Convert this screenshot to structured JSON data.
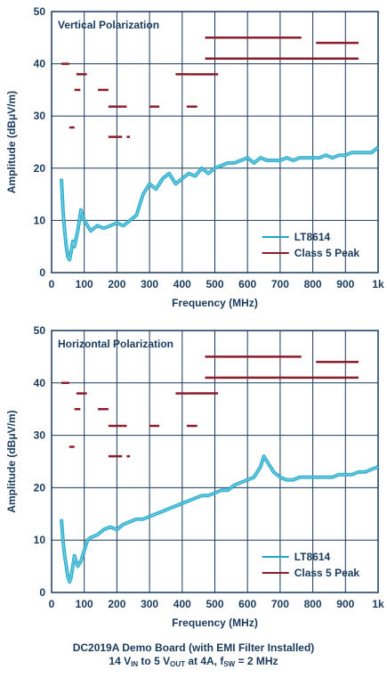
{
  "colors": {
    "axis": "#1a3a5c",
    "grid": "#1a3a5c",
    "lt8614": "#1fa7c8",
    "limit": "#8b1c2c"
  },
  "chart_data": [
    {
      "type": "line",
      "title": "Vertical Polarization",
      "xlabel": "Frequency (MHz)",
      "ylabel": "Amplitude (dBμV/m)",
      "xlim": [
        0,
        1000
      ],
      "ylim": [
        0,
        50
      ],
      "x_ticks": [
        "0",
        "100",
        "200",
        "300",
        "400",
        "500",
        "600",
        "700",
        "800",
        "900",
        "1k"
      ],
      "y_ticks": [
        "0",
        "10",
        "20",
        "30",
        "40",
        "50"
      ],
      "grid": true,
      "legend_position": "bottom-right",
      "series": [
        {
          "name": "LT8614",
          "x": [
            30,
            35,
            40,
            45,
            50,
            55,
            60,
            65,
            70,
            80,
            90,
            100,
            110,
            120,
            140,
            160,
            180,
            200,
            220,
            240,
            260,
            280,
            300,
            320,
            340,
            360,
            380,
            400,
            420,
            440,
            460,
            480,
            500,
            520,
            540,
            560,
            580,
            600,
            620,
            640,
            660,
            680,
            700,
            720,
            740,
            760,
            780,
            800,
            820,
            840,
            860,
            880,
            900,
            920,
            940,
            960,
            980,
            1000
          ],
          "values": [
            18,
            12,
            8,
            5,
            3,
            2.5,
            4,
            6,
            5,
            8,
            12,
            10,
            9,
            8,
            9,
            8.5,
            9,
            9.5,
            9,
            10,
            11,
            15,
            17,
            16,
            18,
            19,
            17,
            18,
            19,
            18.5,
            20,
            19,
            20,
            20.5,
            21,
            21,
            21.5,
            22,
            21,
            22,
            21.5,
            21.5,
            21.5,
            22,
            21.5,
            22,
            22,
            22,
            22,
            22.5,
            22,
            22.5,
            22.5,
            23,
            23,
            23,
            23,
            24
          ]
        },
        {
          "name": "Class 5 Peak",
          "segments": [
            {
              "x": [
                30,
                54
              ],
              "y": 40
            },
            {
              "x": [
                54,
                70
              ],
              "y": 27.8
            },
            {
              "x": [
                70,
                88
              ],
              "y": 35
            },
            {
              "x": [
                76,
                108
              ],
              "y": 38
            },
            {
              "x": [
                142,
                174
              ],
              "y": 35
            },
            {
              "x": [
                174,
                216
              ],
              "y": 31.8
            },
            {
              "x": [
                174,
                216
              ],
              "y": 26
            },
            {
              "x": [
                216,
                230
              ],
              "y": 31.8
            },
            {
              "x": [
                230,
                240
              ],
              "y": 26
            },
            {
              "x": [
                300,
                330
              ],
              "y": 31.8
            },
            {
              "x": [
                380,
                420
              ],
              "y": 38
            },
            {
              "x": [
                420,
                510
              ],
              "y": 38
            },
            {
              "x": [
                414,
                446
              ],
              "y": 31.8
            },
            {
              "x": [
                470,
                512
              ],
              "y": 41
            },
            {
              "x": [
                470,
                765
              ],
              "y": 45
            },
            {
              "x": [
                512,
                940
              ],
              "y": 41
            },
            {
              "x": [
                810,
                940
              ],
              "y": 44
            }
          ]
        }
      ]
    },
    {
      "type": "line",
      "title": "Horizontal Polarization",
      "xlabel": "Frequency (MHz)",
      "ylabel": "Amplitude (dBμV/m)",
      "xlim": [
        0,
        1000
      ],
      "ylim": [
        0,
        50
      ],
      "x_ticks": [
        "0",
        "100",
        "200",
        "300",
        "400",
        "500",
        "600",
        "700",
        "800",
        "900",
        "1k"
      ],
      "y_ticks": [
        "0",
        "10",
        "20",
        "30",
        "40",
        "50"
      ],
      "grid": true,
      "legend_position": "bottom-right",
      "series": [
        {
          "name": "LT8614",
          "x": [
            30,
            35,
            40,
            45,
            50,
            55,
            60,
            65,
            70,
            80,
            90,
            100,
            110,
            120,
            140,
            160,
            180,
            200,
            220,
            240,
            260,
            280,
            300,
            320,
            340,
            360,
            380,
            400,
            420,
            440,
            460,
            480,
            500,
            520,
            540,
            560,
            580,
            600,
            620,
            640,
            650,
            660,
            680,
            700,
            720,
            740,
            760,
            780,
            800,
            820,
            840,
            860,
            880,
            900,
            920,
            940,
            960,
            980,
            1000
          ],
          "values": [
            14,
            10,
            7,
            5,
            3,
            2,
            3,
            5,
            7,
            5,
            6,
            8,
            10,
            10.5,
            11,
            12,
            12.5,
            12,
            13,
            13.5,
            14,
            14,
            14.5,
            15,
            15.5,
            16,
            16.5,
            17,
            17.5,
            18,
            18.5,
            18.5,
            19,
            19.5,
            19.5,
            20.5,
            21,
            21.5,
            22,
            24,
            26,
            25,
            23,
            22,
            21.5,
            21.5,
            22,
            22,
            22,
            22,
            22,
            22,
            22.5,
            22.5,
            22.5,
            23,
            23,
            23.5,
            24
          ]
        },
        {
          "name": "Class 5 Peak",
          "segments": [
            {
              "x": [
                30,
                54
              ],
              "y": 40
            },
            {
              "x": [
                54,
                70
              ],
              "y": 27.8
            },
            {
              "x": [
                70,
                88
              ],
              "y": 35
            },
            {
              "x": [
                76,
                108
              ],
              "y": 38
            },
            {
              "x": [
                142,
                174
              ],
              "y": 35
            },
            {
              "x": [
                174,
                216
              ],
              "y": 31.8
            },
            {
              "x": [
                174,
                216
              ],
              "y": 26
            },
            {
              "x": [
                216,
                230
              ],
              "y": 31.8
            },
            {
              "x": [
                230,
                240
              ],
              "y": 26
            },
            {
              "x": [
                300,
                330
              ],
              "y": 31.8
            },
            {
              "x": [
                380,
                420
              ],
              "y": 38
            },
            {
              "x": [
                420,
                510
              ],
              "y": 38
            },
            {
              "x": [
                414,
                446
              ],
              "y": 31.8
            },
            {
              "x": [
                470,
                512
              ],
              "y": 41
            },
            {
              "x": [
                470,
                765
              ],
              "y": 45
            },
            {
              "x": [
                512,
                940
              ],
              "y": 41
            },
            {
              "x": [
                810,
                940
              ],
              "y": 44
            }
          ]
        }
      ]
    }
  ],
  "caption": {
    "line1": "DC2019A Demo Board (with EMI Filter Installed)",
    "line2_a": "14 V",
    "line2_b": "IN",
    "line2_c": " to 5 V",
    "line2_d": "OUT",
    "line2_e": " at 4A, f",
    "line2_f": "SW",
    "line2_g": " = 2 MHz"
  }
}
